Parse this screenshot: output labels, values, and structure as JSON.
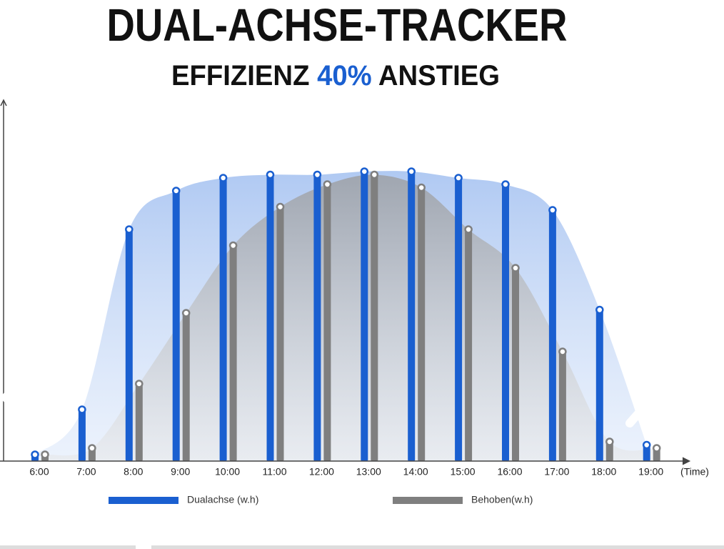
{
  "chart_data": {
    "type": "bar",
    "title": "DUAL-ACHSE-TRACKER",
    "subtitle": [
      "EFFIZIENZ",
      "40%",
      "ANSTIEG"
    ],
    "x_label": "(Time)",
    "categories": [
      "6:00",
      "7:00",
      "8:00",
      "9:00",
      "10:00",
      "11:00",
      "12:00",
      "13:00",
      "14:00",
      "15:00",
      "16:00",
      "17:00",
      "18:00",
      "19:00"
    ],
    "series": [
      {
        "name": "Dualachse (w.h)",
        "color": "#1a5fd0",
        "values": [
          2,
          16,
          72,
          84,
          88,
          89,
          89,
          90,
          90,
          88,
          86,
          78,
          47,
          5
        ]
      },
      {
        "name": "Behoben(w.h)",
        "color": "#7f7f7f",
        "values": [
          2,
          4,
          24,
          46,
          67,
          79,
          86,
          89,
          85,
          72,
          60,
          34,
          6,
          4
        ]
      }
    ],
    "ylim": [
      0,
      100
    ]
  }
}
